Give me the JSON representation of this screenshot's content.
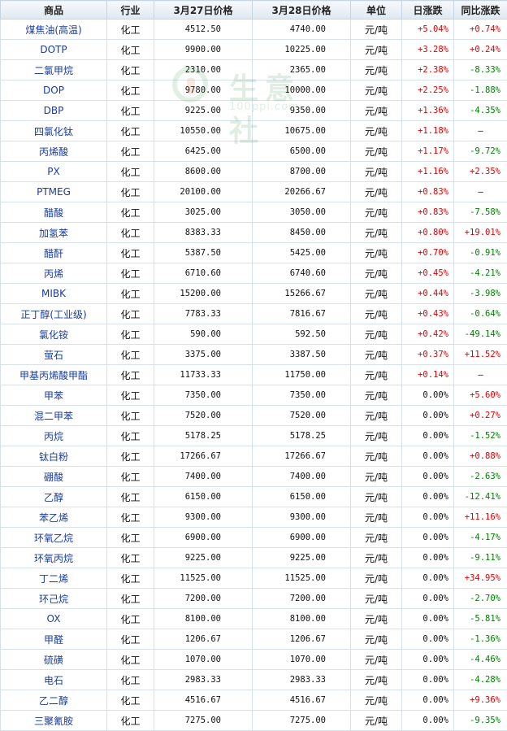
{
  "header": {
    "name": "商品",
    "industry": "行业",
    "price1": "3月27日价格",
    "price2": "3月28日价格",
    "unit": "单位",
    "daily": "日涨跌",
    "yoy": "同比涨跌"
  },
  "watermark": {
    "text": "生意社",
    "url": "100ppi.com"
  },
  "colors": {
    "up": "#e00000",
    "down": "#008000",
    "link": "#1a3c9c"
  },
  "rows": [
    {
      "name": "煤焦油(高温)",
      "industry": "化工",
      "p1": "4512.50",
      "p2": "4740.00",
      "unit": "元/吨",
      "daily": "+5.04%",
      "yoy": "+0.74%"
    },
    {
      "name": "DOTP",
      "industry": "化工",
      "p1": "9900.00",
      "p2": "10225.00",
      "unit": "元/吨",
      "daily": "+3.28%",
      "yoy": "+0.24%"
    },
    {
      "name": "二氯甲烷",
      "industry": "化工",
      "p1": "2310.00",
      "p2": "2365.00",
      "unit": "元/吨",
      "daily": "+2.38%",
      "yoy": "-8.33%"
    },
    {
      "name": "DOP",
      "industry": "化工",
      "p1": "9780.00",
      "p2": "10000.00",
      "unit": "元/吨",
      "daily": "+2.25%",
      "yoy": "-1.88%"
    },
    {
      "name": "DBP",
      "industry": "化工",
      "p1": "9225.00",
      "p2": "9350.00",
      "unit": "元/吨",
      "daily": "+1.36%",
      "yoy": "-4.35%"
    },
    {
      "name": "四氯化钛",
      "industry": "化工",
      "p1": "10550.00",
      "p2": "10675.00",
      "unit": "元/吨",
      "daily": "+1.18%",
      "yoy": "—"
    },
    {
      "name": "丙烯酸",
      "industry": "化工",
      "p1": "6425.00",
      "p2": "6500.00",
      "unit": "元/吨",
      "daily": "+1.17%",
      "yoy": "-9.72%"
    },
    {
      "name": "PX",
      "industry": "化工",
      "p1": "8600.00",
      "p2": "8700.00",
      "unit": "元/吨",
      "daily": "+1.16%",
      "yoy": "+2.35%"
    },
    {
      "name": "PTMEG",
      "industry": "化工",
      "p1": "20100.00",
      "p2": "20266.67",
      "unit": "元/吨",
      "daily": "+0.83%",
      "yoy": "—"
    },
    {
      "name": "醋酸",
      "industry": "化工",
      "p1": "3025.00",
      "p2": "3050.00",
      "unit": "元/吨",
      "daily": "+0.83%",
      "yoy": "-7.58%"
    },
    {
      "name": "加氢苯",
      "industry": "化工",
      "p1": "8383.33",
      "p2": "8450.00",
      "unit": "元/吨",
      "daily": "+0.80%",
      "yoy": "+19.01%"
    },
    {
      "name": "醋酐",
      "industry": "化工",
      "p1": "5387.50",
      "p2": "5425.00",
      "unit": "元/吨",
      "daily": "+0.70%",
      "yoy": "-0.91%"
    },
    {
      "name": "丙烯",
      "industry": "化工",
      "p1": "6710.60",
      "p2": "6740.60",
      "unit": "元/吨",
      "daily": "+0.45%",
      "yoy": "-4.21%"
    },
    {
      "name": "MIBK",
      "industry": "化工",
      "p1": "15200.00",
      "p2": "15266.67",
      "unit": "元/吨",
      "daily": "+0.44%",
      "yoy": "-3.98%"
    },
    {
      "name": "正丁醇(工业级)",
      "industry": "化工",
      "p1": "7783.33",
      "p2": "7816.67",
      "unit": "元/吨",
      "daily": "+0.43%",
      "yoy": "-0.64%"
    },
    {
      "name": "氯化铵",
      "industry": "化工",
      "p1": "590.00",
      "p2": "592.50",
      "unit": "元/吨",
      "daily": "+0.42%",
      "yoy": "-49.14%"
    },
    {
      "name": "萤石",
      "industry": "化工",
      "p1": "3375.00",
      "p2": "3387.50",
      "unit": "元/吨",
      "daily": "+0.37%",
      "yoy": "+11.52%"
    },
    {
      "name": "甲基丙烯酸甲酯",
      "industry": "化工",
      "p1": "11733.33",
      "p2": "11750.00",
      "unit": "元/吨",
      "daily": "+0.14%",
      "yoy": "—"
    },
    {
      "name": "甲苯",
      "industry": "化工",
      "p1": "7350.00",
      "p2": "7350.00",
      "unit": "元/吨",
      "daily": "0.00%",
      "yoy": "+5.60%"
    },
    {
      "name": "混二甲苯",
      "industry": "化工",
      "p1": "7520.00",
      "p2": "7520.00",
      "unit": "元/吨",
      "daily": "0.00%",
      "yoy": "+0.27%"
    },
    {
      "name": "丙烷",
      "industry": "化工",
      "p1": "5178.25",
      "p2": "5178.25",
      "unit": "元/吨",
      "daily": "0.00%",
      "yoy": "-1.52%"
    },
    {
      "name": "钛白粉",
      "industry": "化工",
      "p1": "17266.67",
      "p2": "17266.67",
      "unit": "元/吨",
      "daily": "0.00%",
      "yoy": "+0.88%"
    },
    {
      "name": "硼酸",
      "industry": "化工",
      "p1": "7400.00",
      "p2": "7400.00",
      "unit": "元/吨",
      "daily": "0.00%",
      "yoy": "-2.63%"
    },
    {
      "name": "乙醇",
      "industry": "化工",
      "p1": "6150.00",
      "p2": "6150.00",
      "unit": "元/吨",
      "daily": "0.00%",
      "yoy": "-12.41%"
    },
    {
      "name": "苯乙烯",
      "industry": "化工",
      "p1": "9300.00",
      "p2": "9300.00",
      "unit": "元/吨",
      "daily": "0.00%",
      "yoy": "+11.16%"
    },
    {
      "name": "环氧乙烷",
      "industry": "化工",
      "p1": "6900.00",
      "p2": "6900.00",
      "unit": "元/吨",
      "daily": "0.00%",
      "yoy": "-4.17%"
    },
    {
      "name": "环氧丙烷",
      "industry": "化工",
      "p1": "9225.00",
      "p2": "9225.00",
      "unit": "元/吨",
      "daily": "0.00%",
      "yoy": "-9.11%"
    },
    {
      "name": "丁二烯",
      "industry": "化工",
      "p1": "11525.00",
      "p2": "11525.00",
      "unit": "元/吨",
      "daily": "0.00%",
      "yoy": "+34.95%"
    },
    {
      "name": "环己烷",
      "industry": "化工",
      "p1": "7200.00",
      "p2": "7200.00",
      "unit": "元/吨",
      "daily": "0.00%",
      "yoy": "-2.70%"
    },
    {
      "name": "OX",
      "industry": "化工",
      "p1": "8100.00",
      "p2": "8100.00",
      "unit": "元/吨",
      "daily": "0.00%",
      "yoy": "-5.81%"
    },
    {
      "name": "甲醛",
      "industry": "化工",
      "p1": "1206.67",
      "p2": "1206.67",
      "unit": "元/吨",
      "daily": "0.00%",
      "yoy": "-1.36%"
    },
    {
      "name": "硫磺",
      "industry": "化工",
      "p1": "1070.00",
      "p2": "1070.00",
      "unit": "元/吨",
      "daily": "0.00%",
      "yoy": "-4.46%"
    },
    {
      "name": "电石",
      "industry": "化工",
      "p1": "2983.33",
      "p2": "2983.33",
      "unit": "元/吨",
      "daily": "0.00%",
      "yoy": "-4.28%"
    },
    {
      "name": "乙二醇",
      "industry": "化工",
      "p1": "4516.67",
      "p2": "4516.67",
      "unit": "元/吨",
      "daily": "0.00%",
      "yoy": "+9.36%"
    },
    {
      "name": "三聚氰胺",
      "industry": "化工",
      "p1": "7275.00",
      "p2": "7275.00",
      "unit": "元/吨",
      "daily": "0.00%",
      "yoy": "-9.35%"
    }
  ]
}
